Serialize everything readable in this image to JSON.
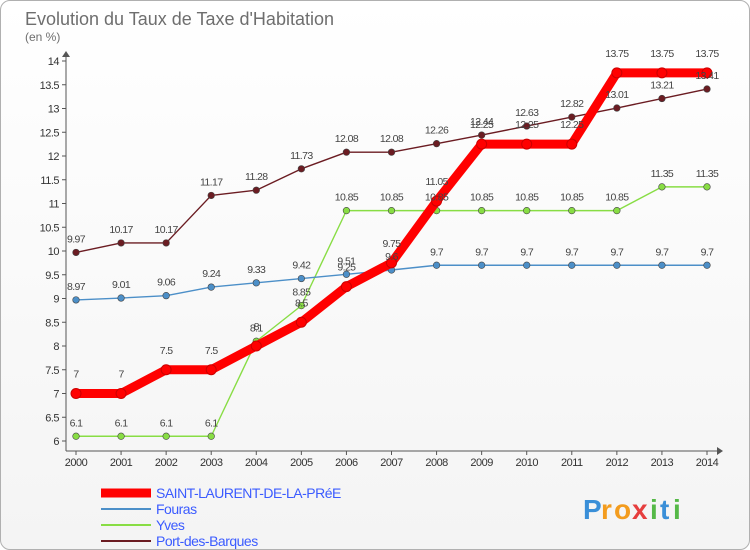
{
  "chart_data": {
    "type": "line",
    "title": "Evolution du Taux de Taxe d'Habitation",
    "subtitle": "(en %)",
    "x": [
      "2000",
      "2001",
      "2002",
      "2003",
      "2004",
      "2005",
      "2006",
      "2007",
      "2008",
      "2009",
      "2010",
      "2011",
      "2012",
      "2013",
      "2014"
    ],
    "ylim": [
      6,
      14
    ],
    "yticks": [
      "6",
      "6.5",
      "7",
      "7.5",
      "8",
      "8.5",
      "9",
      "9.5",
      "10",
      "10.5",
      "11",
      "11.5",
      "12",
      "12.5",
      "13",
      "13.5",
      "14"
    ],
    "grid": false,
    "legend_position": "bottom-left",
    "series": [
      {
        "name": "SAINT-LAURENT-DE-LA-PRéE",
        "color": "#ff0000",
        "values": [
          7,
          7,
          7.5,
          7.5,
          8,
          8.5,
          9.25,
          9.75,
          11.05,
          12.25,
          12.25,
          12.25,
          13.75,
          13.75,
          13.75
        ],
        "labels": [
          "7",
          "7",
          "7.5",
          "7.5",
          "8",
          "8.5",
          "9.25",
          "9.75",
          "11.05",
          "12.25",
          "12.25",
          "12.25",
          "13.75",
          "13.75",
          "13.75"
        ]
      },
      {
        "name": "Fouras",
        "color": "#4c8fc8",
        "values": [
          8.97,
          9.01,
          9.06,
          9.24,
          9.33,
          9.42,
          9.51,
          9.6,
          9.7,
          9.7,
          9.7,
          9.7,
          9.7,
          9.7,
          9.7
        ],
        "labels": [
          "8.97",
          "9.01",
          "9.06",
          "9.24",
          "9.33",
          "9.42",
          "9.51",
          "9.6",
          "9.7",
          "9.7",
          "9.7",
          "9.7",
          "9.7",
          "9.7",
          "9.7"
        ]
      },
      {
        "name": "Yves",
        "color": "#88dd44",
        "values": [
          6.1,
          6.1,
          6.1,
          6.1,
          8.1,
          8.85,
          10.85,
          10.85,
          10.85,
          10.85,
          10.85,
          10.85,
          10.85,
          11.35,
          11.35
        ],
        "labels": [
          "6.1",
          "6.1",
          "6.1",
          "6.1",
          "8.1",
          "8.85",
          "10.85",
          "10.85",
          "10.85",
          "10.85",
          "10.85",
          "10.85",
          "10.85",
          "11.35",
          "11.35"
        ]
      },
      {
        "name": "Port-des-Barques",
        "color": "#6b1c22",
        "values": [
          9.97,
          10.17,
          10.17,
          11.17,
          11.28,
          11.73,
          12.08,
          12.08,
          12.26,
          12.44,
          12.63,
          12.82,
          13.01,
          13.21,
          13.41
        ],
        "labels": [
          "9.97",
          "10.17",
          "10.17",
          "11.17",
          "11.28",
          "11.73",
          "12.08",
          "12.08",
          "12.26",
          "12.44",
          "12.63",
          "12.82",
          "13.01",
          "13.21",
          "13.41"
        ]
      }
    ]
  },
  "brand": {
    "letters": [
      "P",
      "r",
      "o",
      "x",
      "i",
      "t",
      "i"
    ],
    "colors": [
      "#3a8fd8",
      "#f39c1e",
      "#f39c1e",
      "#e63e3e",
      "#55b947",
      "#3a8fd8",
      "#55b947"
    ]
  }
}
